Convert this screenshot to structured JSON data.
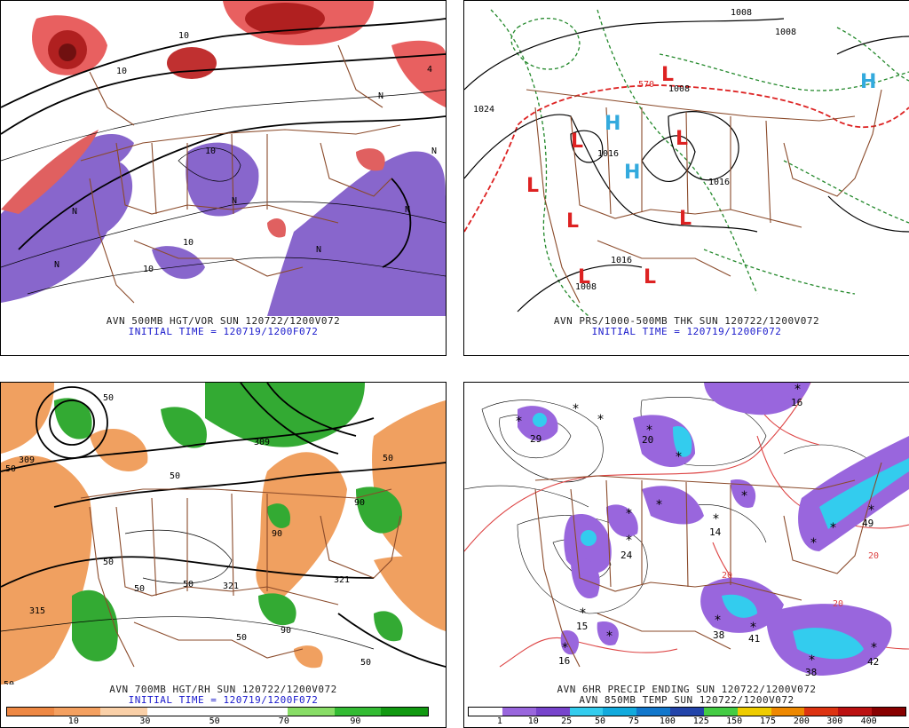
{
  "panels": [
    {
      "id": "p1",
      "caption_line1": "AVN 500MB HGT/VOR SUN 120722/1200V072",
      "caption_line2": "INITIAL TIME = 120719/1200F072",
      "labels": [
        "10",
        "10",
        "10",
        "10",
        "10",
        "N",
        "N",
        "N",
        "N",
        "N",
        "N",
        "N",
        "4"
      ]
    },
    {
      "id": "p2",
      "caption_line1": "AVN PRS/1000-500MB THK SUN 120722/1200V072",
      "caption_line2": "INITIAL TIME = 120719/1200F072",
      "labels": [
        "1008",
        "1008",
        "1008",
        "1016",
        "1016",
        "1016",
        "1024",
        "1008",
        "570"
      ],
      "pressure_centers": [
        "L",
        "L",
        "L",
        "L",
        "L",
        "L",
        "L",
        "L",
        "H",
        "H",
        "H"
      ]
    },
    {
      "id": "p3",
      "caption_line1": "AVN 700MB HGT/RH SUN 120722/1200V072",
      "caption_line2": "INITIAL TIME = 120719/1200F072",
      "labels": [
        "50",
        "50",
        "50",
        "50",
        "50",
        "50",
        "50",
        "50",
        "50",
        "90",
        "90",
        "90",
        "309",
        "309",
        "315",
        "321",
        "321",
        "50"
      ],
      "colorbar": {
        "colors": [
          "#ee8844",
          "#f4a060",
          "#fad0a8",
          "#ffffff",
          "#ffffff",
          "#ffffff",
          "#88dd66",
          "#33bb33",
          "#119911"
        ],
        "ticks": [
          "10",
          "30",
          "50",
          "70",
          "90"
        ]
      }
    },
    {
      "id": "p4",
      "caption_line1": "AVN 6HR PRECIP ENDING SUN 120722/1200V072",
      "caption_line2": "AVN 850MB TEMP SUN 120722/1200V072",
      "labels": [
        "29",
        "20",
        "16",
        "15",
        "16",
        "24",
        "14",
        "49",
        "38",
        "41",
        "38",
        "42",
        "20",
        "20",
        "20"
      ],
      "colorbar": {
        "colors": [
          "#ffffff",
          "#9966dd",
          "#7744cc",
          "#33ccee",
          "#11aadd",
          "#1177cc",
          "#2244aa",
          "#44cc44",
          "#eecc00",
          "#ee8800",
          "#dd3311",
          "#bb1111",
          "#880000"
        ],
        "ticks": [
          "1",
          "10",
          "25",
          "50",
          "75",
          "100",
          "125",
          "150",
          "175",
          "200",
          "300",
          "400"
        ]
      }
    }
  ]
}
